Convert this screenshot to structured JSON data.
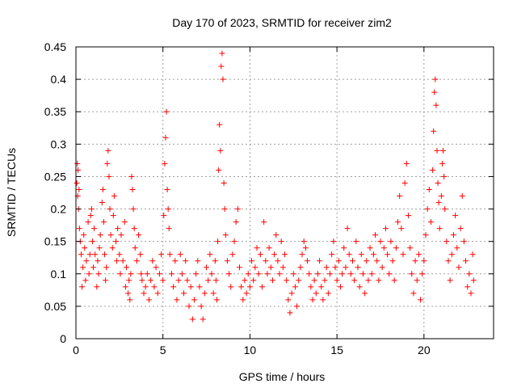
{
  "chart_data": {
    "type": "scatter",
    "title": "Day 170 of 2023, SRMTID for receiver zim2",
    "xlabel": "GPS time / hours",
    "ylabel": "SRMTID / TECUs",
    "xlim": [
      0,
      24
    ],
    "ylim": [
      0,
      0.45
    ],
    "x_ticks": [
      0,
      5,
      10,
      15,
      20
    ],
    "x_tick_labels": [
      "0",
      "5",
      "10",
      "15",
      "20"
    ],
    "y_ticks": [
      0,
      0.05,
      0.1,
      0.15,
      0.2,
      0.25,
      0.3,
      0.35,
      0.4,
      0.45
    ],
    "y_tick_labels": [
      "0",
      "0.05",
      "0.1",
      "0.15",
      "0.2",
      "0.25",
      "0.3",
      "0.35",
      "0.4",
      "0.45"
    ],
    "grid": true,
    "marker": "+",
    "marker_color": "#ff0000",
    "series": [
      {
        "name": "SRMTID",
        "points": [
          [
            0.05,
            0.24
          ],
          [
            0.08,
            0.27
          ],
          [
            0.1,
            0.22
          ],
          [
            0.12,
            0.26
          ],
          [
            0.15,
            0.2
          ],
          [
            0.18,
            0.23
          ],
          [
            0.2,
            0.17
          ],
          [
            0.25,
            0.15
          ],
          [
            0.3,
            0.13
          ],
          [
            0.35,
            0.08
          ],
          [
            0.4,
            0.11
          ],
          [
            0.45,
            0.16
          ],
          [
            0.5,
            0.14
          ],
          [
            0.55,
            0.09
          ],
          [
            0.6,
            0.12
          ],
          [
            0.7,
            0.18
          ],
          [
            0.75,
            0.1
          ],
          [
            0.8,
            0.13
          ],
          [
            0.85,
            0.19
          ],
          [
            0.9,
            0.2
          ],
          [
            0.95,
            0.15
          ],
          [
            1.0,
            0.11
          ],
          [
            1.05,
            0.17
          ],
          [
            1.1,
            0.13
          ],
          [
            1.2,
            0.08
          ],
          [
            1.25,
            0.12
          ],
          [
            1.3,
            0.1
          ],
          [
            1.35,
            0.14
          ],
          [
            1.4,
            0.16
          ],
          [
            1.5,
            0.21
          ],
          [
            1.55,
            0.23
          ],
          [
            1.6,
            0.18
          ],
          [
            1.65,
            0.13
          ],
          [
            1.7,
            0.09
          ],
          [
            1.75,
            0.11
          ],
          [
            1.8,
            0.27
          ],
          [
            1.85,
            0.29
          ],
          [
            1.9,
            0.25
          ],
          [
            1.95,
            0.2
          ],
          [
            2.0,
            0.16
          ],
          [
            2.1,
            0.14
          ],
          [
            2.15,
            0.19
          ],
          [
            2.2,
            0.22
          ],
          [
            2.3,
            0.15
          ],
          [
            2.35,
            0.12
          ],
          [
            2.4,
            0.17
          ],
          [
            2.5,
            0.13
          ],
          [
            2.55,
            0.1
          ],
          [
            2.6,
            0.16
          ],
          [
            2.7,
            0.12
          ],
          [
            2.8,
            0.18
          ],
          [
            2.85,
            0.08
          ],
          [
            2.9,
            0.11
          ],
          [
            3.0,
            0.07
          ],
          [
            3.05,
            0.09
          ],
          [
            3.1,
            0.06
          ],
          [
            3.15,
            0.1
          ],
          [
            3.2,
            0.25
          ],
          [
            3.25,
            0.23
          ],
          [
            3.3,
            0.2
          ],
          [
            3.35,
            0.17
          ],
          [
            3.4,
            0.14
          ],
          [
            3.5,
            0.12
          ],
          [
            3.6,
            0.16
          ],
          [
            3.7,
            0.13
          ],
          [
            3.75,
            0.1
          ],
          [
            3.8,
            0.09
          ],
          [
            3.9,
            0.07
          ],
          [
            4.0,
            0.08
          ],
          [
            4.1,
            0.1
          ],
          [
            4.2,
            0.06
          ],
          [
            4.3,
            0.09
          ],
          [
            4.4,
            0.12
          ],
          [
            4.5,
            0.08
          ],
          [
            4.6,
            0.11
          ],
          [
            4.7,
            0.07
          ],
          [
            4.8,
            0.1
          ],
          [
            4.9,
            0.13
          ],
          [
            5.0,
            0.09
          ],
          [
            5.05,
            0.19
          ],
          [
            5.1,
            0.27
          ],
          [
            5.15,
            0.31
          ],
          [
            5.2,
            0.35
          ],
          [
            5.25,
            0.23
          ],
          [
            5.3,
            0.2
          ],
          [
            5.35,
            0.17
          ],
          [
            5.4,
            0.13
          ],
          [
            5.5,
            0.1
          ],
          [
            5.6,
            0.08
          ],
          [
            5.7,
            0.12
          ],
          [
            5.8,
            0.06
          ],
          [
            5.9,
            0.09
          ],
          [
            6.0,
            0.13
          ],
          [
            6.1,
            0.1
          ],
          [
            6.2,
            0.07
          ],
          [
            6.3,
            0.12
          ],
          [
            6.4,
            0.09
          ],
          [
            6.5,
            0.05
          ],
          [
            6.6,
            0.08
          ],
          [
            6.7,
            0.03
          ],
          [
            6.8,
            0.06
          ],
          [
            6.9,
            0.1
          ],
          [
            7.0,
            0.12
          ],
          [
            7.1,
            0.08
          ],
          [
            7.2,
            0.05
          ],
          [
            7.3,
            0.03
          ],
          [
            7.4,
            0.07
          ],
          [
            7.5,
            0.11
          ],
          [
            7.6,
            0.09
          ],
          [
            7.7,
            0.13
          ],
          [
            7.8,
            0.1
          ],
          [
            7.9,
            0.07
          ],
          [
            8.0,
            0.12
          ],
          [
            8.05,
            0.09
          ],
          [
            8.1,
            0.06
          ],
          [
            8.15,
            0.15
          ],
          [
            8.2,
            0.26
          ],
          [
            8.25,
            0.33
          ],
          [
            8.3,
            0.29
          ],
          [
            8.35,
            0.42
          ],
          [
            8.4,
            0.44
          ],
          [
            8.45,
            0.4
          ],
          [
            8.5,
            0.24
          ],
          [
            8.55,
            0.2
          ],
          [
            8.6,
            0.16
          ],
          [
            8.7,
            0.12
          ],
          [
            8.8,
            0.1
          ],
          [
            8.9,
            0.08
          ],
          [
            9.0,
            0.13
          ],
          [
            9.1,
            0.15
          ],
          [
            9.2,
            0.18
          ],
          [
            9.3,
            0.2
          ],
          [
            9.4,
            0.11
          ],
          [
            9.5,
            0.08
          ],
          [
            9.6,
            0.06
          ],
          [
            9.7,
            0.09
          ],
          [
            9.8,
            0.07
          ],
          [
            9.9,
            0.1
          ],
          [
            10.0,
            0.08
          ],
          [
            10.1,
            0.12
          ],
          [
            10.2,
            0.09
          ],
          [
            10.3,
            0.11
          ],
          [
            10.4,
            0.14
          ],
          [
            10.5,
            0.1
          ],
          [
            10.6,
            0.13
          ],
          [
            10.7,
            0.08
          ],
          [
            10.8,
            0.18
          ],
          [
            10.9,
            0.12
          ],
          [
            11.0,
            0.1
          ],
          [
            11.1,
            0.14
          ],
          [
            11.2,
            0.11
          ],
          [
            11.3,
            0.09
          ],
          [
            11.4,
            0.13
          ],
          [
            11.5,
            0.16
          ],
          [
            11.6,
            0.12
          ],
          [
            11.7,
            0.1
          ],
          [
            11.8,
            0.15
          ],
          [
            11.9,
            0.11
          ],
          [
            12.0,
            0.13
          ],
          [
            12.1,
            0.09
          ],
          [
            12.2,
            0.06
          ],
          [
            12.3,
            0.04
          ],
          [
            12.4,
            0.07
          ],
          [
            12.5,
            0.1
          ],
          [
            12.6,
            0.08
          ],
          [
            12.7,
            0.05
          ],
          [
            12.8,
            0.09
          ],
          [
            12.9,
            0.11
          ],
          [
            13.0,
            0.13
          ],
          [
            13.1,
            0.15
          ],
          [
            13.2,
            0.14
          ],
          [
            13.3,
            0.12
          ],
          [
            13.4,
            0.1
          ],
          [
            13.5,
            0.08
          ],
          [
            13.6,
            0.06
          ],
          [
            13.7,
            0.09
          ],
          [
            13.8,
            0.07
          ],
          [
            13.9,
            0.1
          ],
          [
            14.0,
            0.12
          ],
          [
            14.1,
            0.08
          ],
          [
            14.2,
            0.06
          ],
          [
            14.3,
            0.09
          ],
          [
            14.4,
            0.11
          ],
          [
            14.5,
            0.07
          ],
          [
            14.6,
            0.1
          ],
          [
            14.7,
            0.13
          ],
          [
            14.8,
            0.15
          ],
          [
            14.9,
            0.11
          ],
          [
            15.0,
            0.09
          ],
          [
            15.1,
            0.12
          ],
          [
            15.2,
            0.08
          ],
          [
            15.3,
            0.1
          ],
          [
            15.4,
            0.14
          ],
          [
            15.5,
            0.11
          ],
          [
            15.6,
            0.17
          ],
          [
            15.7,
            0.13
          ],
          [
            15.8,
            0.1
          ],
          [
            15.9,
            0.12
          ],
          [
            16.0,
            0.09
          ],
          [
            16.1,
            0.15
          ],
          [
            16.2,
            0.11
          ],
          [
            16.3,
            0.08
          ],
          [
            16.4,
            0.13
          ],
          [
            16.5,
            0.1
          ],
          [
            16.6,
            0.07
          ],
          [
            16.7,
            0.12
          ],
          [
            16.8,
            0.09
          ],
          [
            16.9,
            0.14
          ],
          [
            17.0,
            0.1
          ],
          [
            17.1,
            0.13
          ],
          [
            17.2,
            0.16
          ],
          [
            17.3,
            0.12
          ],
          [
            17.4,
            0.09
          ],
          [
            17.5,
            0.15
          ],
          [
            17.6,
            0.11
          ],
          [
            17.7,
            0.14
          ],
          [
            17.8,
            0.17
          ],
          [
            17.9,
            0.13
          ],
          [
            18.0,
            0.1
          ],
          [
            18.1,
            0.15
          ],
          [
            18.2,
            0.12
          ],
          [
            18.3,
            0.09
          ],
          [
            18.4,
            0.14
          ],
          [
            18.5,
            0.18
          ],
          [
            18.6,
            0.22
          ],
          [
            18.7,
            0.17
          ],
          [
            18.8,
            0.13
          ],
          [
            18.9,
            0.24
          ],
          [
            19.0,
            0.27
          ],
          [
            19.1,
            0.19
          ],
          [
            19.2,
            0.14
          ],
          [
            19.3,
            0.1
          ],
          [
            19.4,
            0.07
          ],
          [
            19.5,
            0.12
          ],
          [
            19.6,
            0.09
          ],
          [
            19.7,
            0.13
          ],
          [
            19.8,
            0.06
          ],
          [
            19.9,
            0.1
          ],
          [
            20.0,
            0.12
          ],
          [
            20.1,
            0.16
          ],
          [
            20.2,
            0.2
          ],
          [
            20.3,
            0.23
          ],
          [
            20.4,
            0.18
          ],
          [
            20.5,
            0.26
          ],
          [
            20.55,
            0.32
          ],
          [
            20.6,
            0.38
          ],
          [
            20.65,
            0.4
          ],
          [
            20.7,
            0.36
          ],
          [
            20.75,
            0.29
          ],
          [
            20.8,
            0.24
          ],
          [
            20.85,
            0.21
          ],
          [
            20.9,
            0.17
          ],
          [
            21.0,
            0.22
          ],
          [
            21.05,
            0.27
          ],
          [
            21.1,
            0.29
          ],
          [
            21.15,
            0.25
          ],
          [
            21.2,
            0.2
          ],
          [
            21.3,
            0.15
          ],
          [
            21.4,
            0.12
          ],
          [
            21.5,
            0.09
          ],
          [
            21.6,
            0.13
          ],
          [
            21.7,
            0.16
          ],
          [
            21.8,
            0.19
          ],
          [
            21.9,
            0.14
          ],
          [
            22.0,
            0.11
          ],
          [
            22.1,
            0.17
          ],
          [
            22.2,
            0.22
          ],
          [
            22.3,
            0.15
          ],
          [
            22.4,
            0.12
          ],
          [
            22.5,
            0.08
          ],
          [
            22.6,
            0.1
          ],
          [
            22.7,
            0.07
          ],
          [
            22.8,
            0.13
          ],
          [
            22.85,
            0.09
          ]
        ]
      }
    ]
  }
}
